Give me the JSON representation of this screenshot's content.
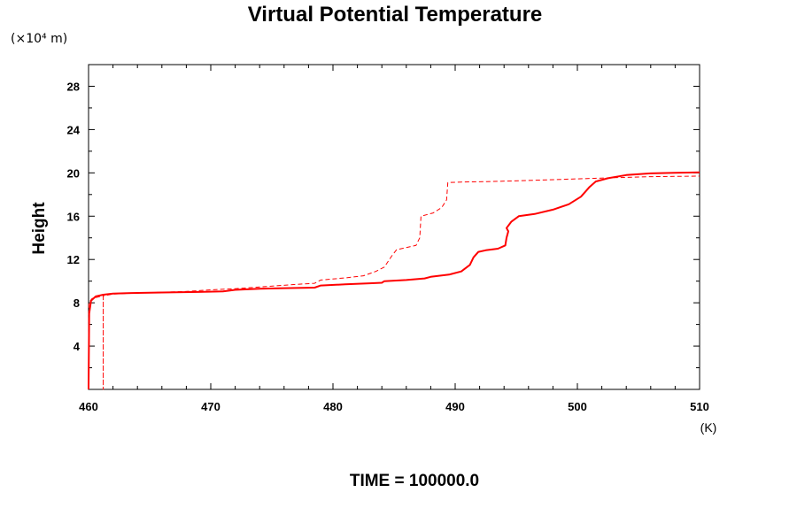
{
  "chart_data": {
    "type": "line",
    "title": "Virtual Potential Temperature",
    "scale_label": "(×10⁴ m)",
    "ylabel": "Height",
    "xunit": "(K)",
    "footer": "TIME = 100000.0",
    "xlim": [
      460,
      510
    ],
    "ylim": [
      0,
      30
    ],
    "xticks": [
      460,
      470,
      480,
      490,
      500,
      510
    ],
    "yticks": [
      4,
      8,
      12,
      16,
      20,
      24,
      28
    ],
    "grid": false,
    "line_color": "#ff0000",
    "series": [
      {
        "style": "solid",
        "points": [
          [
            460.0,
            0.0
          ],
          [
            460.05,
            7.0
          ],
          [
            460.2,
            8.2
          ],
          [
            460.6,
            8.6
          ],
          [
            461.2,
            8.75
          ],
          [
            462.0,
            8.85
          ],
          [
            463.5,
            8.9
          ],
          [
            466.0,
            8.95
          ],
          [
            469.0,
            9.0
          ],
          [
            471.0,
            9.05
          ],
          [
            472.0,
            9.2
          ],
          [
            474.0,
            9.3
          ],
          [
            476.0,
            9.35
          ],
          [
            478.5,
            9.4
          ],
          [
            479.0,
            9.6
          ],
          [
            481.0,
            9.7
          ],
          [
            483.0,
            9.8
          ],
          [
            484.0,
            9.85
          ],
          [
            484.2,
            10.0
          ],
          [
            486.0,
            10.1
          ],
          [
            487.5,
            10.25
          ],
          [
            488.0,
            10.4
          ],
          [
            489.5,
            10.6
          ],
          [
            490.5,
            10.9
          ],
          [
            491.2,
            11.5
          ],
          [
            491.5,
            12.2
          ],
          [
            491.9,
            12.7
          ],
          [
            492.5,
            12.85
          ],
          [
            493.5,
            13.0
          ],
          [
            494.1,
            13.3
          ],
          [
            494.2,
            14.0
          ],
          [
            494.35,
            14.6
          ],
          [
            494.2,
            14.9
          ],
          [
            494.6,
            15.5
          ],
          [
            495.2,
            16.0
          ],
          [
            496.5,
            16.2
          ],
          [
            498.0,
            16.6
          ],
          [
            499.3,
            17.1
          ],
          [
            500.3,
            17.8
          ],
          [
            501.0,
            18.7
          ],
          [
            501.5,
            19.2
          ],
          [
            502.5,
            19.5
          ],
          [
            504.0,
            19.8
          ],
          [
            506.0,
            19.95
          ],
          [
            508.0,
            20.0
          ],
          [
            510.0,
            20.05
          ]
        ]
      },
      {
        "style": "dashed",
        "points": [
          [
            460.0,
            1.0
          ],
          [
            460.02,
            8.0
          ],
          [
            460.3,
            8.4
          ],
          [
            461.0,
            8.6
          ],
          [
            461.2,
            8.6
          ],
          [
            461.2,
            0.0
          ],
          [
            461.2,
            8.65
          ],
          [
            462.0,
            8.8
          ],
          [
            464.0,
            8.9
          ],
          [
            468.0,
            9.05
          ],
          [
            470.0,
            9.2
          ],
          [
            472.0,
            9.3
          ],
          [
            474.5,
            9.5
          ],
          [
            477.0,
            9.7
          ],
          [
            478.5,
            9.8
          ],
          [
            479.0,
            10.1
          ],
          [
            481.0,
            10.3
          ],
          [
            482.5,
            10.5
          ],
          [
            483.5,
            10.9
          ],
          [
            484.2,
            11.3
          ],
          [
            484.8,
            12.3
          ],
          [
            485.2,
            12.9
          ],
          [
            486.0,
            13.1
          ],
          [
            486.8,
            13.3
          ],
          [
            487.1,
            14.0
          ],
          [
            487.2,
            16.0
          ],
          [
            488.2,
            16.3
          ],
          [
            488.9,
            16.8
          ],
          [
            489.3,
            17.5
          ],
          [
            489.4,
            19.1
          ],
          [
            490.5,
            19.15
          ],
          [
            493.0,
            19.2
          ],
          [
            496.0,
            19.3
          ],
          [
            500.0,
            19.45
          ],
          [
            503.0,
            19.55
          ],
          [
            506.0,
            19.65
          ],
          [
            510.0,
            19.7
          ]
        ]
      }
    ]
  }
}
